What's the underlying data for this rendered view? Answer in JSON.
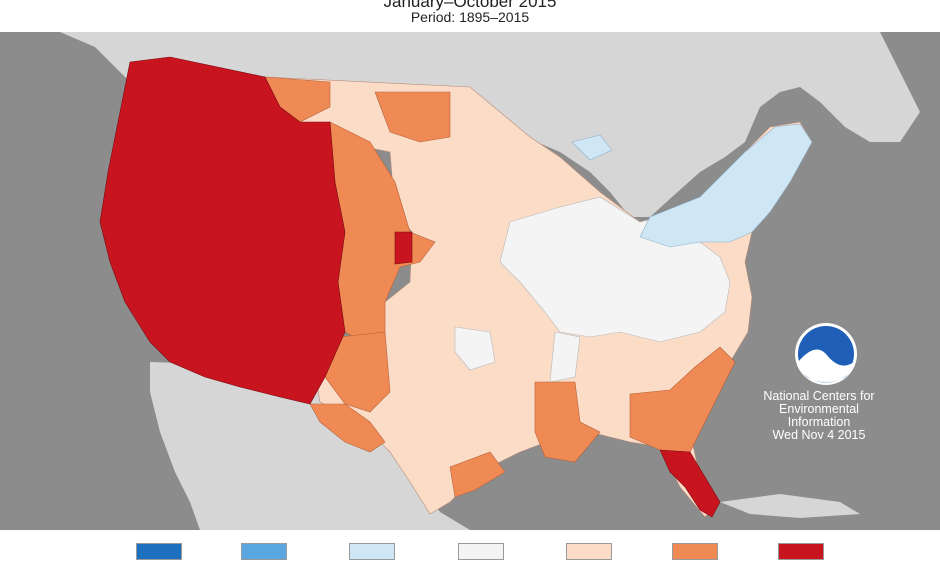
{
  "header": {
    "title": "January–October 2015",
    "period": "Period: 1895–2015"
  },
  "credit": {
    "logo_text": "NOAA",
    "line1": "National Centers for",
    "line2": "Environmental",
    "line3": "Information",
    "date": "Wed Nov  4 2015"
  },
  "legend": {
    "swatches": [
      "#1f6fbf",
      "#5aa6e0",
      "#cfe6f5",
      "#f4f4f4",
      "#fbdcc7",
      "#f08a55",
      "#c8141f"
    ]
  },
  "colors": {
    "ocean": "#8c8c8c",
    "neighbor_land": "#d6d6d6",
    "much_above": "#c8141f",
    "above": "#f08a55",
    "slightly_above": "#fbdcc7",
    "near_normal": "#f4f4f4",
    "below": "#cfe6f5"
  },
  "icons": {
    "logo": "noaa-logo-icon"
  }
}
